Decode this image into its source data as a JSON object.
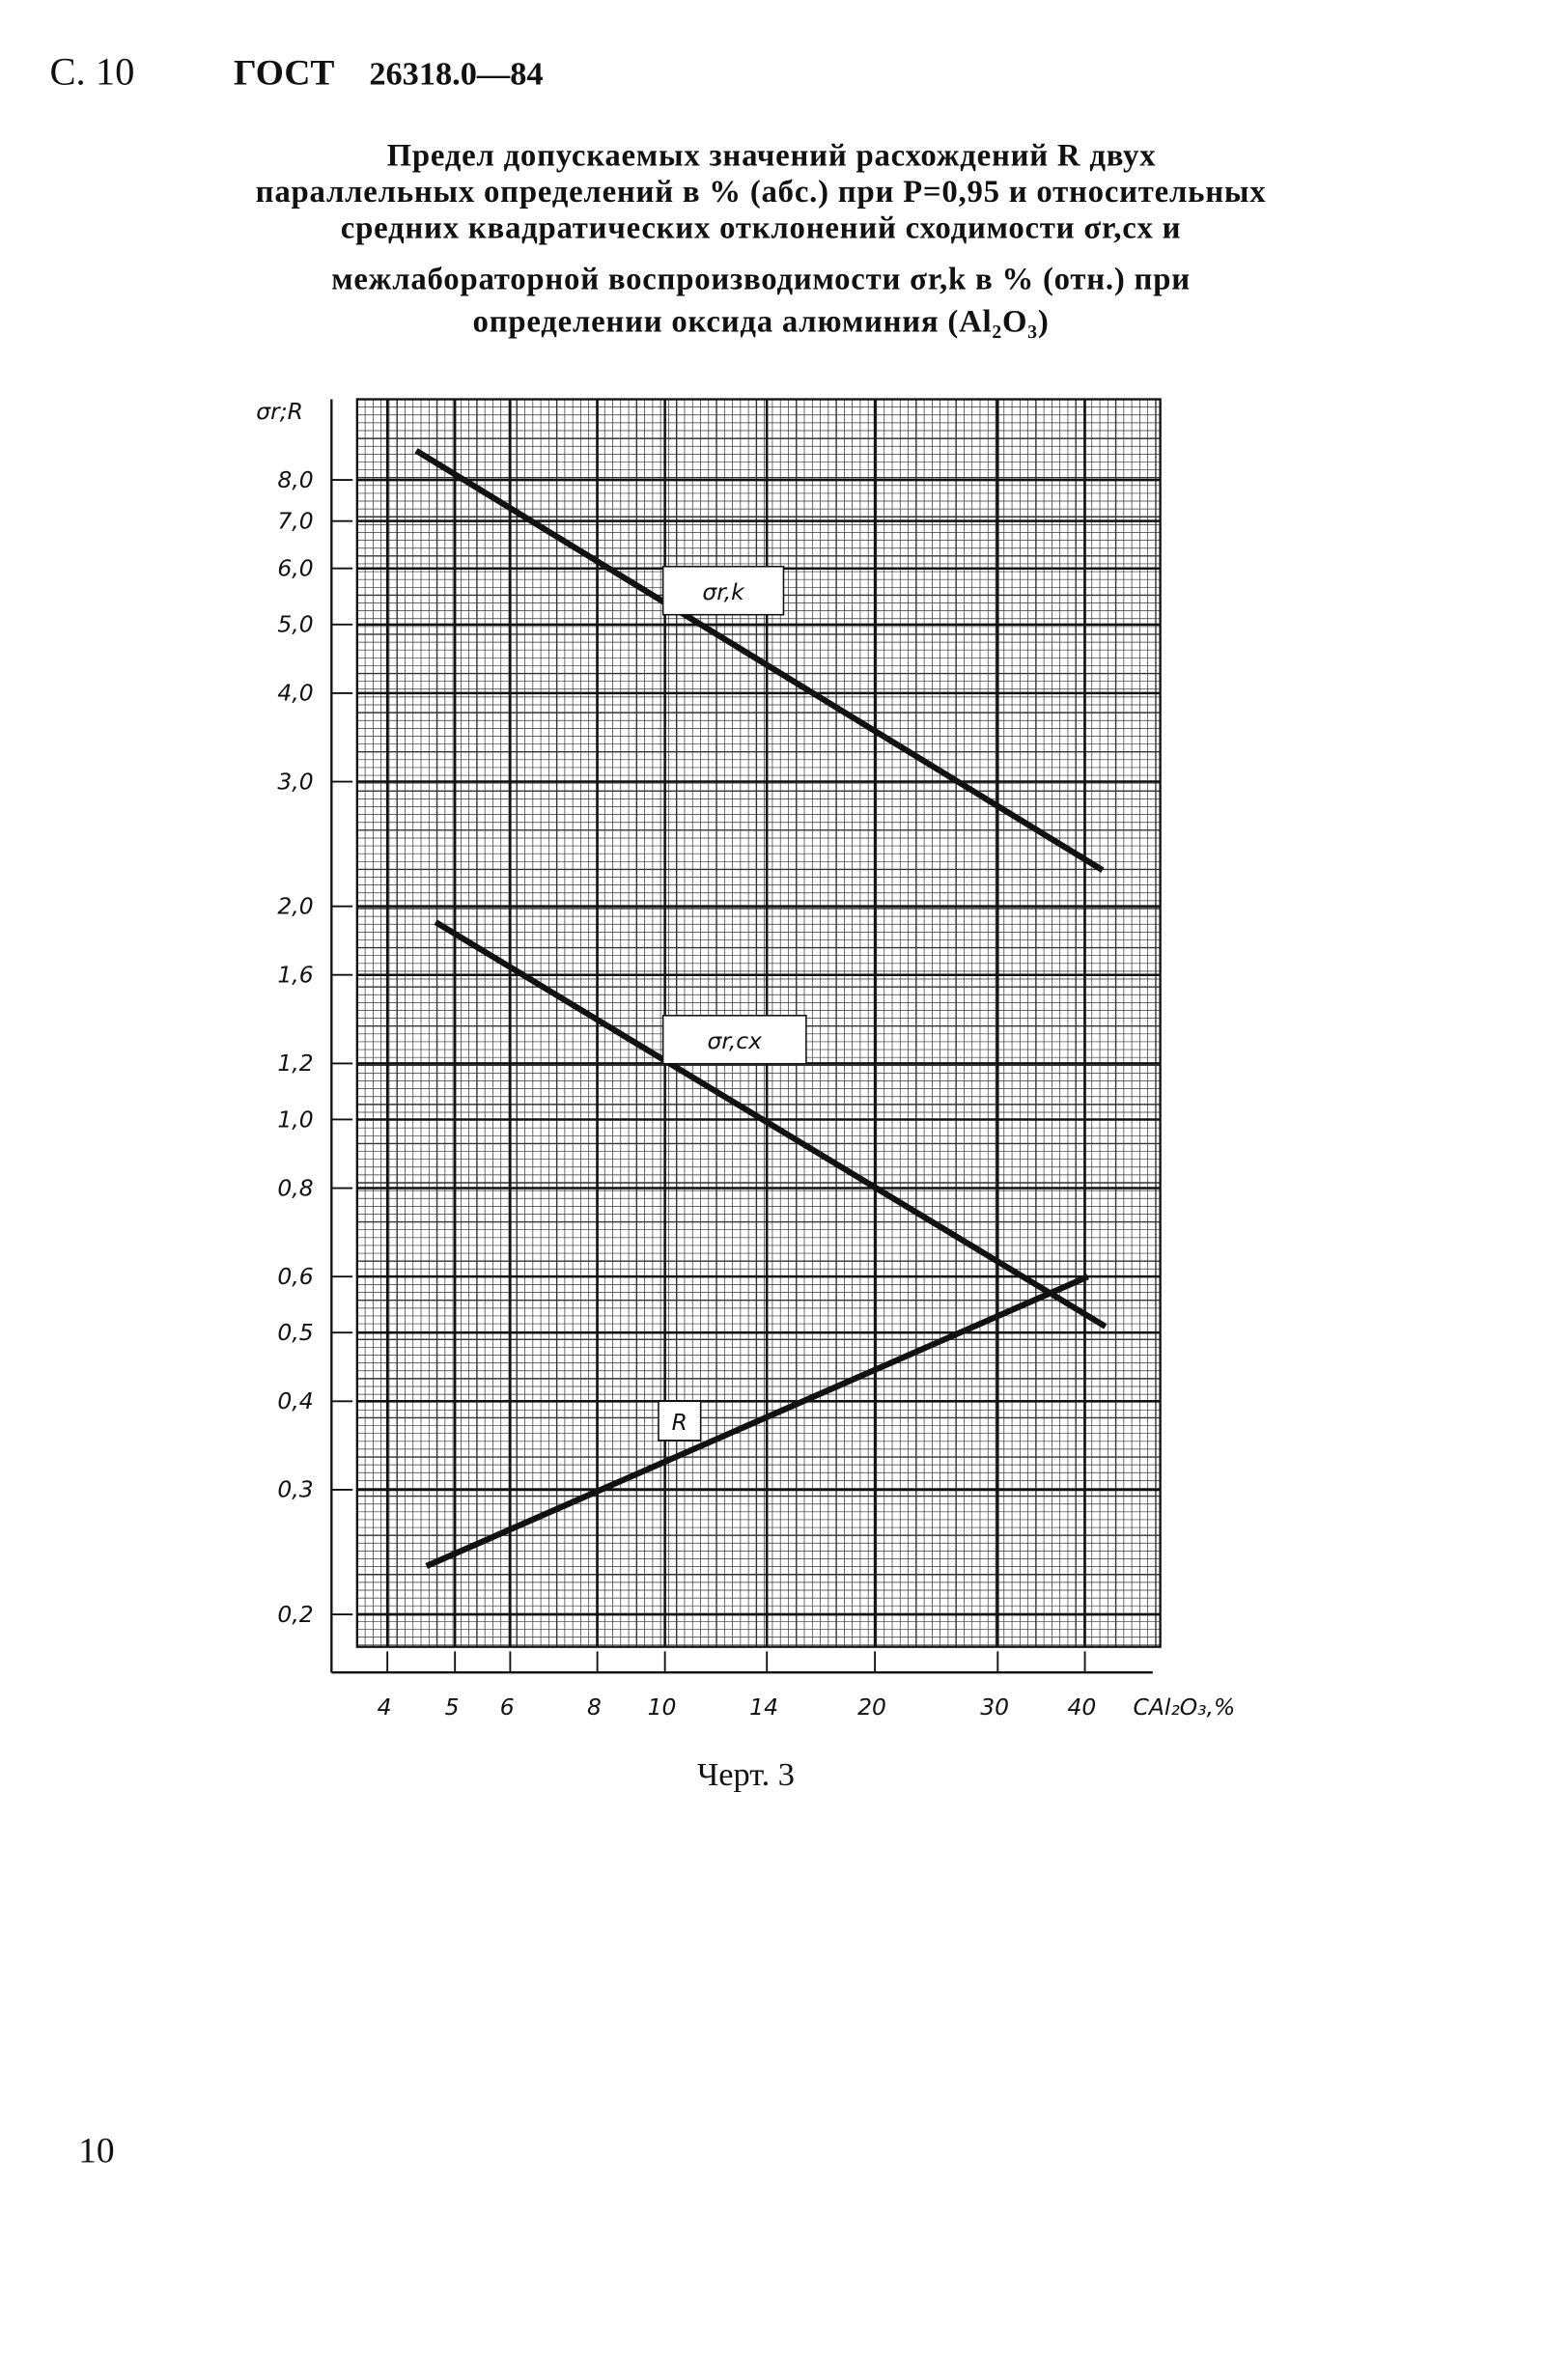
{
  "header": {
    "page": "С. 10",
    "standard": "ГОСТ",
    "number": "26318.0—84"
  },
  "title_lines": [
    "Предел допускаемых значений расхождений R двух",
    "параллельных определений в % (абс.) при P=0,95 и относительных",
    "средних квадратических отклонений сходимости σr,cx и",
    "межлабораторной воспроизводимости σr,k в % (отн.) при",
    "определении оксида алюминия (Al₂O₃)"
  ],
  "chart_data": {
    "type": "line",
    "ylabel": "σr;R",
    "xlabel": "CAl₂O₃,%",
    "xscale": "log",
    "yscale": "log",
    "grid": true,
    "xlim": [
      3.62,
      51.3
    ],
    "ylim": [
      0.18,
      10.4
    ],
    "xticks": [
      4,
      5,
      6,
      8,
      10,
      14,
      20,
      30,
      40
    ],
    "yticks": [
      {
        "value": 0.2,
        "label": "0,2"
      },
      {
        "value": 0.3,
        "label": "0,3"
      },
      {
        "value": 0.4,
        "label": "0,4"
      },
      {
        "value": 0.5,
        "label": "0,5"
      },
      {
        "value": 0.6,
        "label": "0,6"
      },
      {
        "value": 0.8,
        "label": "0,8"
      },
      {
        "value": 1.0,
        "label": "1,0"
      },
      {
        "value": 1.2,
        "label": "1,2"
      },
      {
        "value": 1.6,
        "label": "1,6"
      },
      {
        "value": 2.0,
        "label": "2,0"
      },
      {
        "value": 3.0,
        "label": "3,0"
      },
      {
        "value": 4.0,
        "label": "4,0"
      },
      {
        "value": 5.0,
        "label": "5,0"
      },
      {
        "value": 6.0,
        "label": "6,0"
      },
      {
        "value": 7.0,
        "label": "7,0"
      },
      {
        "value": 8.0,
        "label": "8,0"
      }
    ],
    "series": [
      {
        "name": "σr,k",
        "color": "#111111",
        "x": [
          4.4,
          42.4
        ],
        "values": [
          8.8,
          2.25
        ]
      },
      {
        "name": "σr,cx",
        "color": "#111111",
        "x": [
          4.69,
          42.8
        ],
        "values": [
          1.9,
          0.51
        ]
      },
      {
        "name": "R",
        "color": "#111111",
        "x": [
          4.55,
          40.4
        ],
        "values": [
          0.234,
          0.6
        ]
      }
    ]
  },
  "caption": "Черт. 3",
  "page_number": "10"
}
